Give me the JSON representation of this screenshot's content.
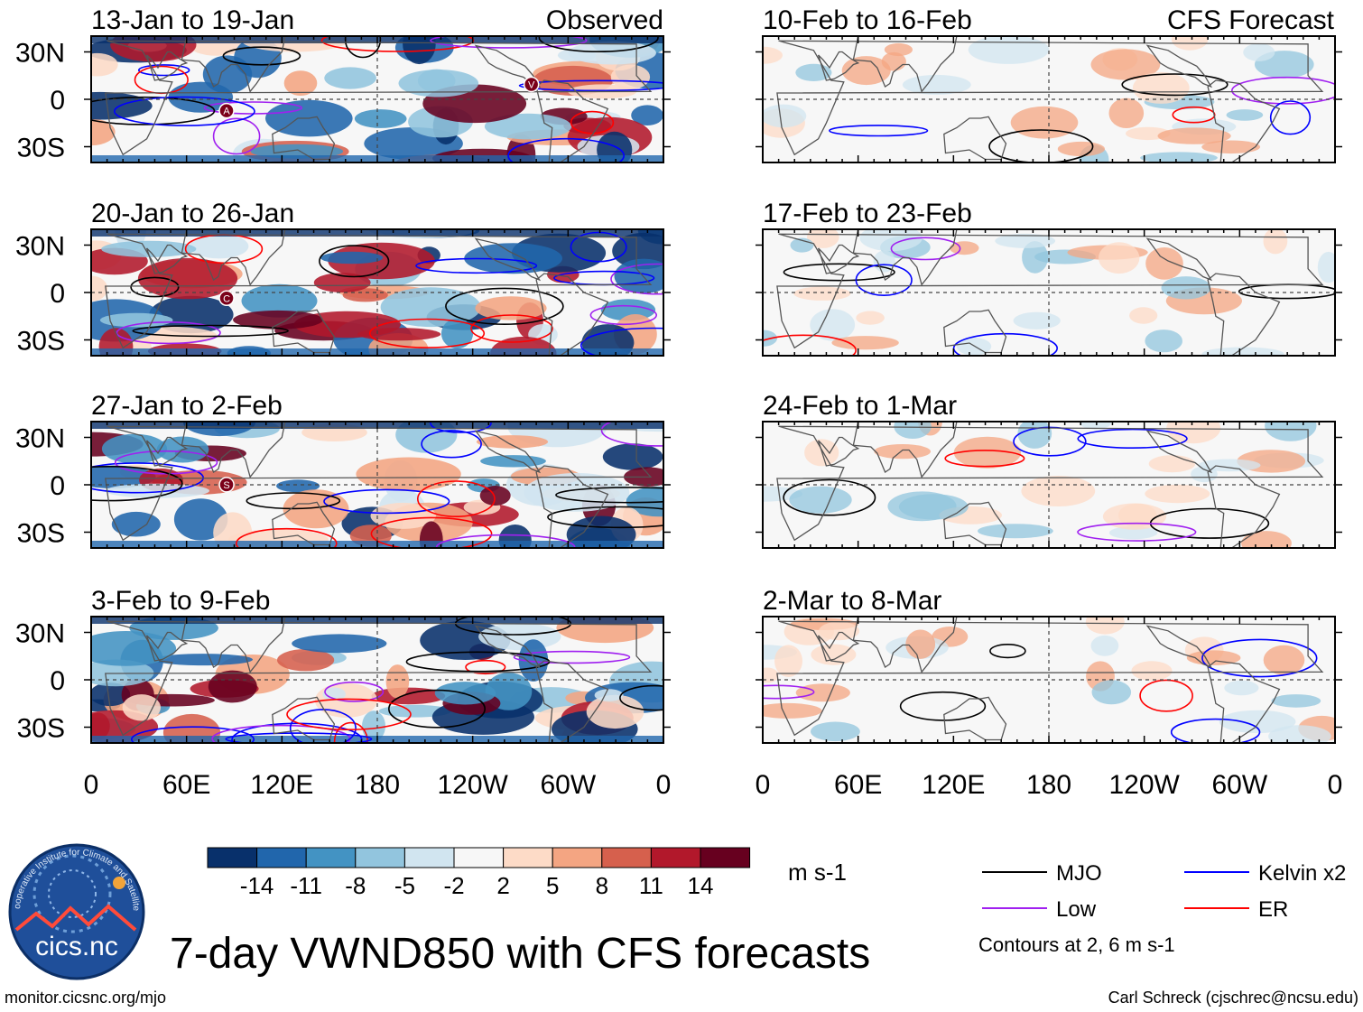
{
  "chart_data": {
    "type": "heatmap",
    "title": "7-day VWND850 with CFS forecasts",
    "variable": "VWND850",
    "units": "m s-1",
    "column_labels": {
      "observed": "Observed",
      "forecast": "CFS Forecast"
    },
    "x_ticks": [
      "0",
      "60E",
      "120E",
      "180",
      "120W",
      "60W",
      "0"
    ],
    "x_range_deg": [
      0,
      360
    ],
    "y_ticks": [
      "30N",
      "0",
      "30S"
    ],
    "y_range_deg": [
      -40,
      40
    ],
    "observed_panels": [
      {
        "period": "13-Jan to 19-Jan",
        "markers": [
          "A",
          "V"
        ]
      },
      {
        "period": "20-Jan to 26-Jan",
        "markers": [
          "C"
        ]
      },
      {
        "period": "27-Jan to 2-Feb",
        "markers": [
          "S"
        ]
      },
      {
        "period": "3-Feb to 9-Feb",
        "markers": []
      }
    ],
    "forecast_panels": [
      {
        "period": "10-Feb to 16-Feb"
      },
      {
        "period": "17-Feb to 23-Feb"
      },
      {
        "period": "24-Feb to 1-Mar"
      },
      {
        "period": "2-Mar to 8-Mar"
      }
    ],
    "colorbar": {
      "levels": [
        -14,
        -11,
        -8,
        -5,
        -2,
        2,
        5,
        8,
        11,
        14
      ],
      "labels": [
        "-14",
        "-11",
        "-8",
        "-5",
        "-2",
        "2",
        "5",
        "8",
        "11",
        "14"
      ],
      "colors": [
        "#08306b",
        "#2166ac",
        "#4393c3",
        "#92c5de",
        "#d1e5f0",
        "#f7f7f7",
        "#fddbc7",
        "#f4a582",
        "#d6604d",
        "#b2182b",
        "#67001f"
      ],
      "unit_label": "m s-1"
    },
    "legend": [
      {
        "name": "MJO",
        "color": "#000000"
      },
      {
        "name": "Kelvin x2",
        "color": "#0000ff"
      },
      {
        "name": "Low",
        "color": "#a020f0"
      },
      {
        "name": "ER",
        "color": "#ff0000"
      }
    ],
    "contour_note": "Contours at 2, 6 m s-1"
  },
  "footer": {
    "url": "monitor.cicsnc.org/mjo",
    "credit": "Carl Schreck (cjschrec@ncsu.edu)"
  },
  "logo": {
    "text": "cics.nc",
    "ring_text": "Cooperative Institute for Climate and Satellites"
  }
}
